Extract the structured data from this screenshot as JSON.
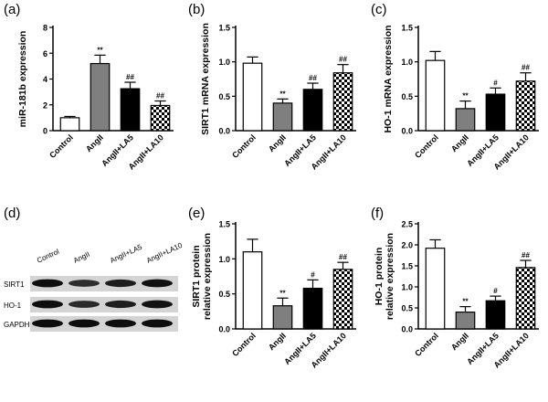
{
  "panel_labels": [
    "(a)",
    "(b)",
    "(c)",
    "(d)",
    "(e)",
    "(f)"
  ],
  "colors": {
    "Control": "#ffffff",
    "AngII": "#7f7f7f",
    "AngII+LA5": "#000000",
    "AngII+LA10": "checker"
  },
  "blot": {
    "lane_labels": [
      "Control",
      "AngII",
      "AngII+LA5",
      "AngII+LA10"
    ],
    "row_labels": [
      "SIRT1",
      "HO-1",
      "GAPDH"
    ]
  },
  "chart_data": [
    {
      "type": "bar",
      "panel": "(a)",
      "categories": [
        "Control",
        "AngII",
        "AngII+LA5",
        "AngII+LA10"
      ],
      "values": [
        1.0,
        5.2,
        3.25,
        1.95
      ],
      "errors": [
        0.1,
        0.65,
        0.5,
        0.35
      ],
      "annotations": [
        "",
        "**",
        "##",
        "##"
      ],
      "ylabel": "miR-181b expression",
      "ylim": [
        0,
        8
      ],
      "yticks": [
        "0",
        "2",
        "4",
        "6",
        "8"
      ],
      "ytick_values": [
        0,
        2,
        4,
        6,
        8
      ]
    },
    {
      "type": "bar",
      "panel": "(b)",
      "categories": [
        "Control",
        "AngII",
        "AngII+LA5",
        "AngII+LA10"
      ],
      "values": [
        0.98,
        0.4,
        0.6,
        0.84
      ],
      "errors": [
        0.09,
        0.06,
        0.09,
        0.12
      ],
      "annotations": [
        "",
        "**",
        "##",
        "##"
      ],
      "ylabel": "SIRT1 mRNA expression",
      "ylim": [
        0,
        1.5
      ],
      "yticks": [
        "0.0",
        "0.5",
        "1.0",
        "1.5"
      ],
      "ytick_values": [
        0,
        0.5,
        1.0,
        1.5
      ]
    },
    {
      "type": "bar",
      "panel": "(c)",
      "categories": [
        "Control",
        "AngII",
        "AngII+LA5",
        "AngII+LA10"
      ],
      "values": [
        1.02,
        0.32,
        0.53,
        0.72
      ],
      "errors": [
        0.13,
        0.11,
        0.09,
        0.12
      ],
      "annotations": [
        "",
        "**",
        "#",
        "##"
      ],
      "ylabel": "HO-1 mRNA expression",
      "ylim": [
        0,
        1.5
      ],
      "yticks": [
        "0.0",
        "0.5",
        "1.0",
        "1.5"
      ],
      "ytick_values": [
        0,
        0.5,
        1.0,
        1.5
      ]
    },
    {
      "type": "bar",
      "panel": "(e)",
      "categories": [
        "Control",
        "AngII",
        "AngII+LA5",
        "AngII+LA10"
      ],
      "values": [
        1.1,
        0.33,
        0.58,
        0.85
      ],
      "errors": [
        0.18,
        0.11,
        0.12,
        0.1
      ],
      "annotations": [
        "",
        "**",
        "#",
        "##"
      ],
      "ylabel": "SIRT1 protein\nrelative expression",
      "ylim": [
        0,
        1.5
      ],
      "yticks": [
        "0.0",
        "0.5",
        "1.0",
        "1.5"
      ],
      "ytick_values": [
        0,
        0.5,
        1.0,
        1.5
      ]
    },
    {
      "type": "bar",
      "panel": "(f)",
      "categories": [
        "Control",
        "AngII",
        "AngII+LA5",
        "AngII+LA10"
      ],
      "values": [
        1.92,
        0.4,
        0.67,
        1.46
      ],
      "errors": [
        0.2,
        0.13,
        0.11,
        0.17
      ],
      "annotations": [
        "",
        "**",
        "#",
        "##"
      ],
      "ylabel": "HO-1 protein\nrelative expression",
      "ylim": [
        0,
        2.5
      ],
      "yticks": [
        "0.0",
        "0.5",
        "1.0",
        "1.5",
        "2.0",
        "2.5"
      ],
      "ytick_values": [
        0,
        0.5,
        1.0,
        1.5,
        2.0,
        2.5
      ]
    }
  ]
}
